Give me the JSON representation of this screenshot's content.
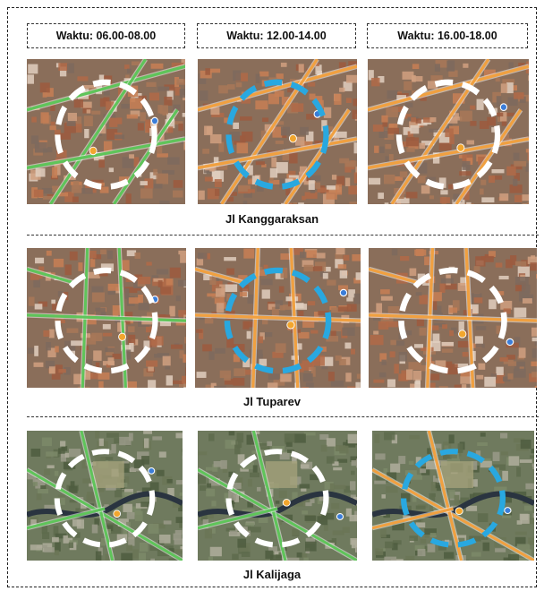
{
  "time_labels": [
    "Waktu: 06.00-08.00",
    "Waktu: 12.00-14.00",
    "Waktu: 16.00-18.00"
  ],
  "rows": [
    {
      "road_name": "Jl Kanggaraksan",
      "panels": [
        {
          "time": "06.00-08.00",
          "circle_color": "#ffffff",
          "traffic": "green"
        },
        {
          "time": "12.00-14.00",
          "circle_color": "#29a8e0",
          "traffic": "orange"
        },
        {
          "time": "16.00-18.00",
          "circle_color": "#ffffff",
          "traffic": "orange"
        }
      ]
    },
    {
      "road_name": "Jl Tuparev",
      "panels": [
        {
          "time": "06.00-08.00",
          "circle_color": "#ffffff",
          "traffic": "green"
        },
        {
          "time": "12.00-14.00",
          "circle_color": "#29a8e0",
          "traffic": "orange"
        },
        {
          "time": "16.00-18.00",
          "circle_color": "#ffffff",
          "traffic": "orange"
        }
      ]
    },
    {
      "road_name": "Jl Kalijaga",
      "panels": [
        {
          "time": "06.00-08.00",
          "circle_color": "#ffffff",
          "traffic": "green"
        },
        {
          "time": "12.00-14.00",
          "circle_color": "#ffffff",
          "traffic": "green"
        },
        {
          "time": "16.00-18.00",
          "circle_color": "#29a8e0",
          "traffic": "orange"
        }
      ]
    }
  ],
  "colors": {
    "traffic_green": "#5fc45a",
    "traffic_orange": "#f0a040",
    "highlight_blue": "#29a8e0",
    "normal_white": "#ffffff"
  },
  "icons": [
    "map-pin-icon",
    "location-marker-icon"
  ]
}
